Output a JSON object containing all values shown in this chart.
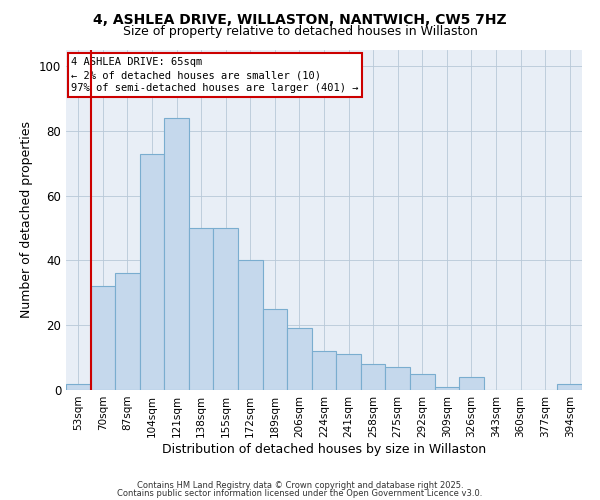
{
  "title": "4, ASHLEA DRIVE, WILLASTON, NANTWICH, CW5 7HZ",
  "subtitle": "Size of property relative to detached houses in Willaston",
  "xlabel": "Distribution of detached houses by size in Willaston",
  "ylabel": "Number of detached properties",
  "categories": [
    "53sqm",
    "70sqm",
    "87sqm",
    "104sqm",
    "121sqm",
    "138sqm",
    "155sqm",
    "172sqm",
    "189sqm",
    "206sqm",
    "224sqm",
    "241sqm",
    "258sqm",
    "275sqm",
    "292sqm",
    "309sqm",
    "326sqm",
    "343sqm",
    "360sqm",
    "377sqm",
    "394sqm"
  ],
  "values": [
    2,
    32,
    36,
    73,
    84,
    50,
    50,
    40,
    25,
    19,
    12,
    11,
    8,
    7,
    5,
    1,
    4,
    0,
    0,
    0,
    2
  ],
  "bar_color": "#c5d8ec",
  "bar_edge_color": "#7aadcf",
  "highlight_bar_index": 1,
  "highlight_color": "#cc0000",
  "ylim": [
    0,
    105
  ],
  "yticks": [
    0,
    20,
    40,
    60,
    80,
    100
  ],
  "annotation_title": "4 ASHLEA DRIVE: 65sqm",
  "annotation_line1": "← 2% of detached houses are smaller (10)",
  "annotation_line2": "97% of semi-detached houses are larger (401) →",
  "bg_color": "#e8eef6",
  "grid_color": "#b8c8d8",
  "footer_line1": "Contains HM Land Registry data © Crown copyright and database right 2025.",
  "footer_line2": "Contains public sector information licensed under the Open Government Licence v3.0.",
  "title_fontsize": 10,
  "subtitle_fontsize": 9,
  "tick_fontsize": 7.5,
  "ylabel_fontsize": 9,
  "xlabel_fontsize": 9,
  "ann_fontsize": 7.5
}
